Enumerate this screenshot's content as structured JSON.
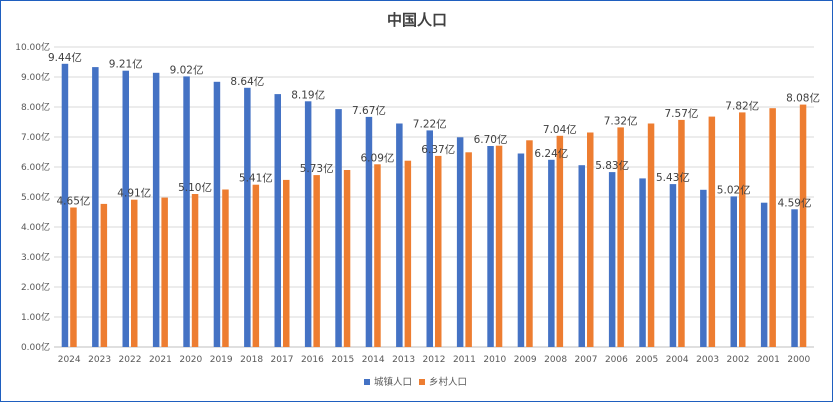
{
  "chart_data": {
    "type": "bar",
    "title": "中国人口",
    "xlabel": "",
    "ylabel": "",
    "ylim": [
      0,
      10
    ],
    "y_ticks": [
      "0.00亿",
      "1.00亿",
      "2.00亿",
      "3.00亿",
      "4.00亿",
      "5.00亿",
      "6.00亿",
      "7.00亿",
      "8.00亿",
      "9.00亿",
      "10.00亿"
    ],
    "grid": true,
    "legend_position": "bottom",
    "categories": [
      "2024",
      "2023",
      "2022",
      "2021",
      "2020",
      "2019",
      "2018",
      "2017",
      "2016",
      "2015",
      "2014",
      "2013",
      "2012",
      "2011",
      "2010",
      "2009",
      "2008",
      "2007",
      "2006",
      "2005",
      "2004",
      "2003",
      "2002",
      "2001",
      "2000"
    ],
    "series": [
      {
        "name": "城镇人口",
        "color": "#4472c4",
        "values": [
          9.44,
          9.33,
          9.21,
          9.14,
          9.02,
          8.84,
          8.64,
          8.43,
          8.19,
          7.93,
          7.67,
          7.45,
          7.22,
          6.99,
          6.7,
          6.45,
          6.24,
          6.06,
          5.83,
          5.62,
          5.43,
          5.24,
          5.02,
          4.81,
          4.59
        ],
        "labels": [
          "9.44亿",
          "",
          "9.21亿",
          "",
          "9.02亿",
          "",
          "8.64亿",
          "",
          "8.19亿",
          "",
          "7.67亿",
          "",
          "7.22亿",
          "",
          "6.70亿",
          "",
          "6.24亿",
          "",
          "5.83亿",
          "",
          "5.43亿",
          "",
          "5.02亿",
          "",
          "4.59亿"
        ]
      },
      {
        "name": "乡村人口",
        "color": "#ed7d31",
        "values": [
          4.65,
          4.77,
          4.91,
          4.98,
          5.1,
          5.25,
          5.41,
          5.57,
          5.73,
          5.9,
          6.09,
          6.21,
          6.37,
          6.49,
          6.71,
          6.89,
          7.04,
          7.15,
          7.32,
          7.45,
          7.57,
          7.68,
          7.82,
          7.96,
          8.08
        ],
        "labels": [
          "4.65亿",
          "",
          "4.91亿",
          "",
          "5.10亿",
          "",
          "5.41亿",
          "",
          "5.73亿",
          "",
          "6.09亿",
          "",
          "6.37亿",
          "",
          "",
          "",
          "7.04亿",
          "",
          "7.32亿",
          "",
          "7.57亿",
          "",
          "7.82亿",
          "",
          "8.08亿"
        ]
      }
    ]
  }
}
